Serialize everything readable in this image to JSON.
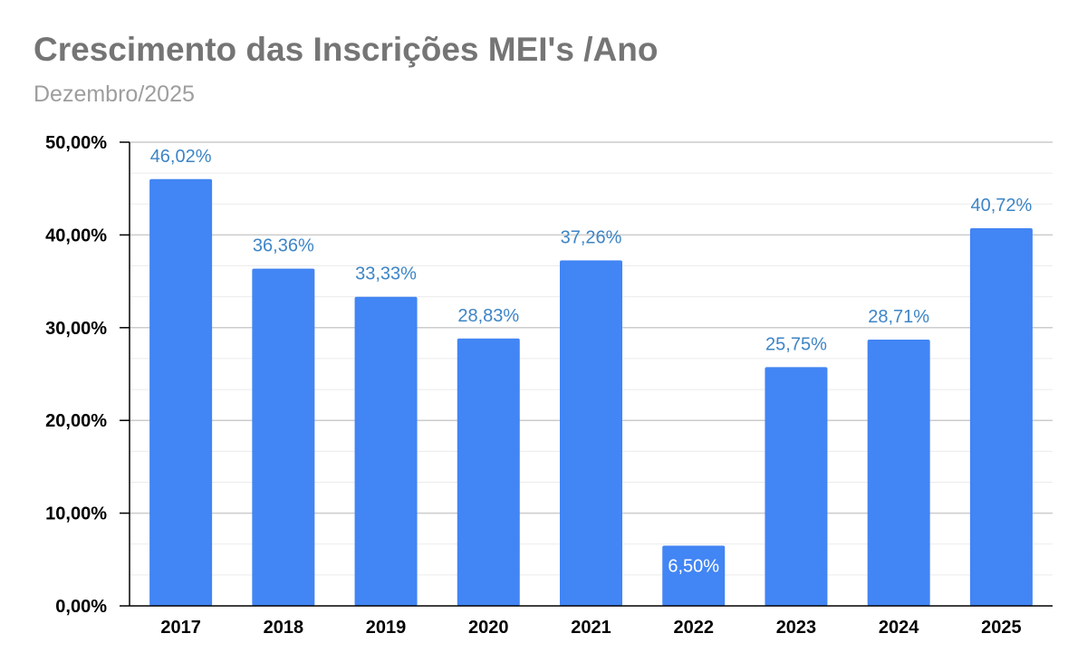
{
  "chart_data": {
    "type": "bar",
    "title": "Crescimento das Inscrições MEI's /Ano",
    "subtitle": "Dezembro/2025",
    "categories": [
      "2017",
      "2018",
      "2019",
      "2020",
      "2021",
      "2022",
      "2023",
      "2024",
      "2025"
    ],
    "values": [
      46.02,
      36.36,
      33.33,
      28.83,
      37.26,
      6.5,
      25.75,
      28.71,
      40.72
    ],
    "value_labels": [
      "46,02%",
      "36,36%",
      "33,33%",
      "28,83%",
      "37,26%",
      "6,50%",
      "25,75%",
      "28,71%",
      "40,72%"
    ],
    "ylim": [
      0,
      50
    ],
    "y_ticks": [
      0,
      10,
      20,
      30,
      40,
      50
    ],
    "y_tick_labels": [
      "0,00%",
      "10,00%",
      "20,00%",
      "30,00%",
      "40,00%",
      "50,00%"
    ],
    "minor_gridlines": true,
    "xlabel": "",
    "ylabel": "",
    "bar_color": "#4285f4",
    "label_color": "#3d85c6",
    "inside_label_color": "#ffffff"
  }
}
